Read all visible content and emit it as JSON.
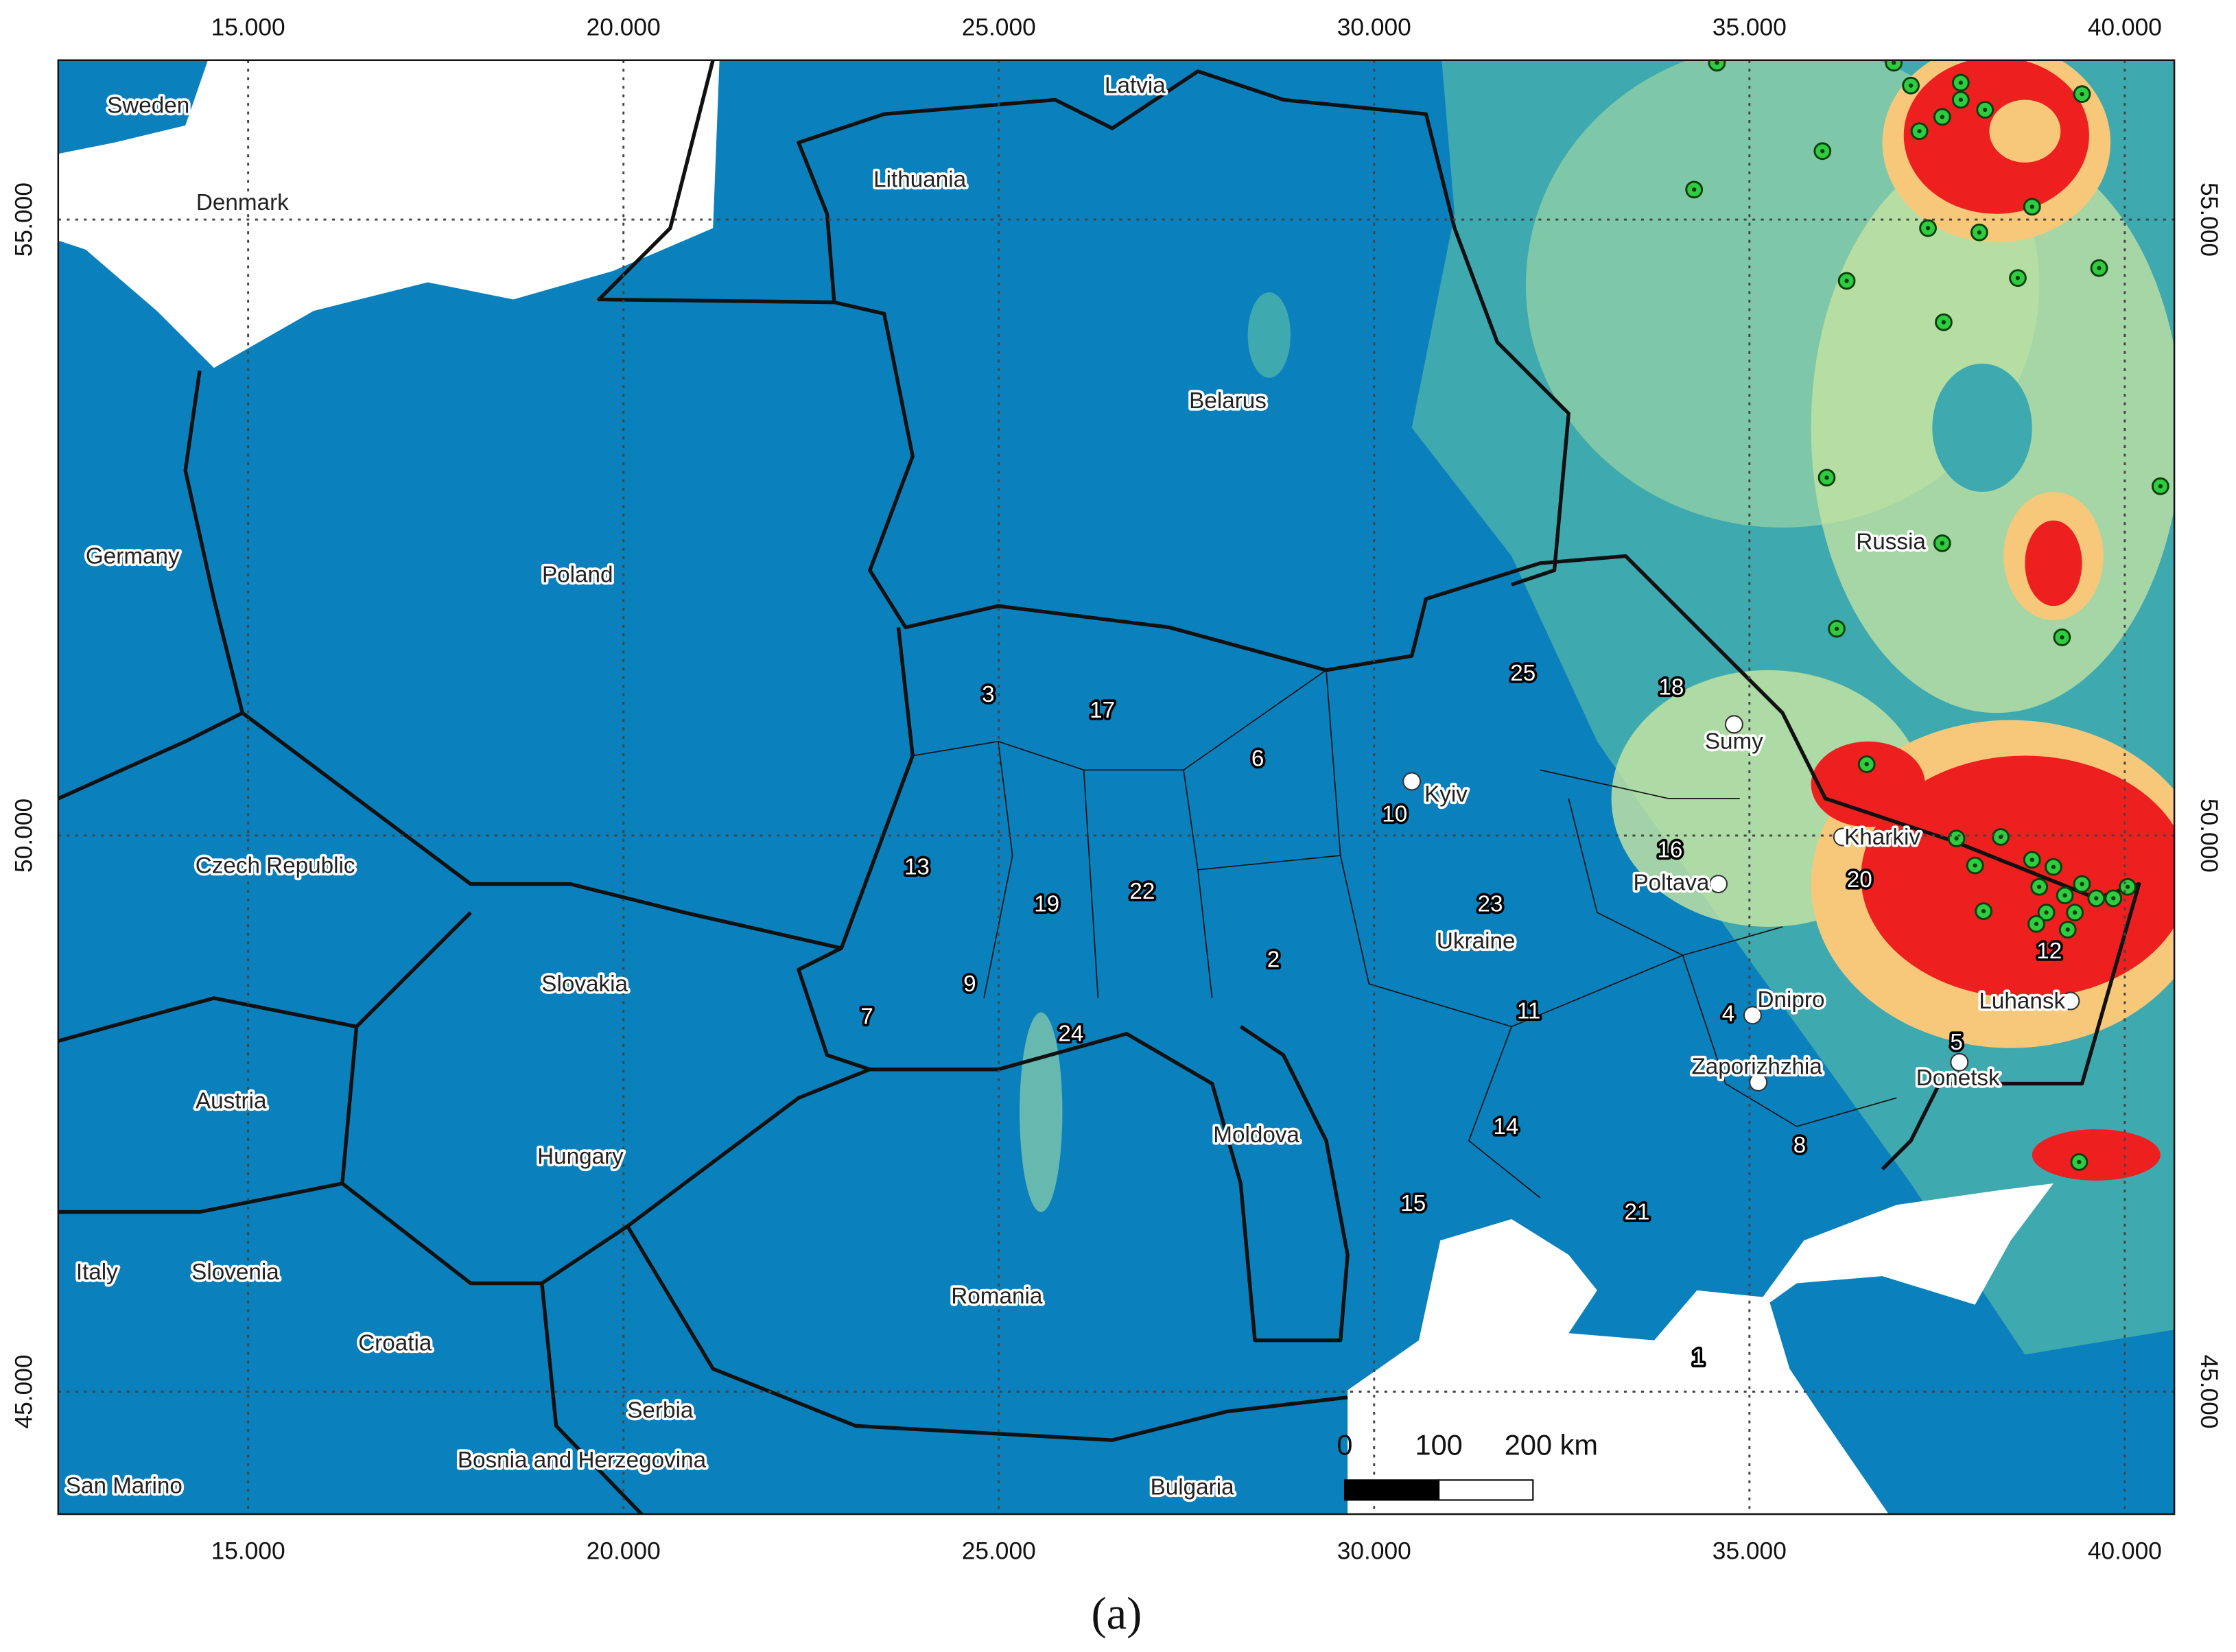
{
  "map": {
    "xlim": [
      12.47,
      40.66
    ],
    "ylim": [
      43.82,
      56.22
    ],
    "xticks": [
      {
        "value": 15,
        "label": "15.000"
      },
      {
        "value": 20,
        "label": "20.000"
      },
      {
        "value": 25,
        "label": "25.000"
      },
      {
        "value": 30,
        "label": "30.000"
      },
      {
        "value": 35,
        "label": "35.000"
      },
      {
        "value": 40,
        "label": "40.000"
      }
    ],
    "yticks": [
      {
        "value": 45,
        "label": "45.000"
      },
      {
        "value": 50,
        "label": "50.000"
      },
      {
        "value": 55,
        "label": "55.000"
      }
    ],
    "grid": true,
    "countries": [
      "Sweden",
      "Denmark",
      "Latvia",
      "Lithuania",
      "Belarus",
      "Germany",
      "Poland",
      "Russia",
      "Czech Republic",
      "Slovakia",
      "Ukraine",
      "Austria",
      "Hungary",
      "Moldova",
      "Italy",
      "Slovenia",
      "Croatia",
      "Romania",
      "Serbia",
      "Bosnia and Herzegovina",
      "San Marino",
      "Bulgaria"
    ],
    "cities": [
      "Kyiv",
      "Sumy",
      "Kharkiv",
      "Poltava",
      "Dnipro",
      "Luhansk",
      "Zaporizhzhia",
      "Donetsk"
    ],
    "regions": [
      1,
      2,
      3,
      4,
      5,
      6,
      7,
      8,
      9,
      10,
      11,
      12,
      13,
      14,
      15,
      16,
      17,
      18,
      19,
      20,
      21,
      22,
      23,
      24,
      25
    ],
    "scale_bar": [
      0,
      100,
      {
        "value": 200,
        "label": "200 km"
      }
    ]
  },
  "caption": "(a)"
}
